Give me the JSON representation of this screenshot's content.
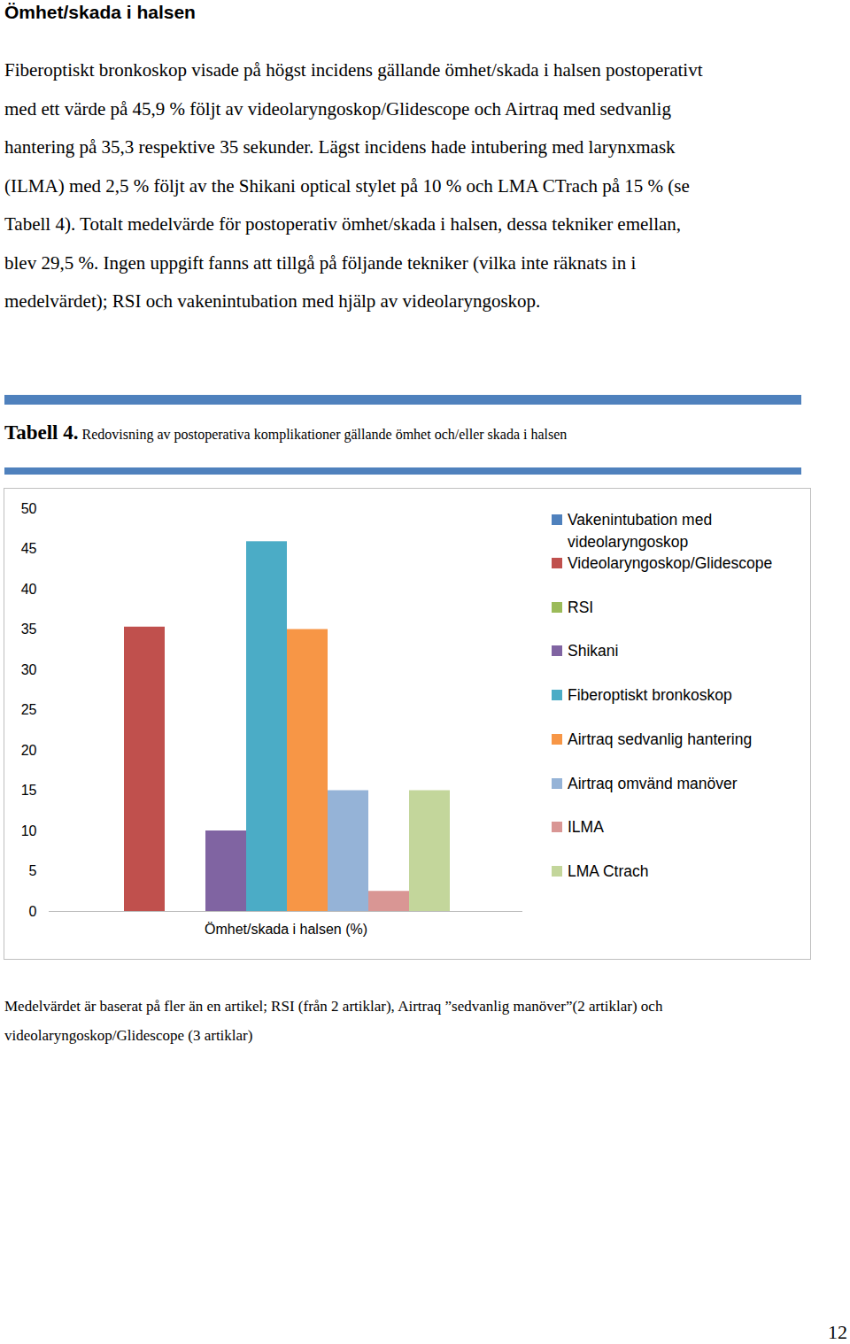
{
  "heading": "Ömhet/skada i halsen",
  "paragraph": [
    "Fiberoptiskt bronkoskop visade på högst incidens gällande ömhet/skada i halsen postoperativt",
    "med ett värde på 45,9 % följt av videolaryngoskop/Glidescope och Airtraq med sedvanlig",
    "hantering på 35,3 respektive 35 sekunder. Lägst incidens hade intubering med larynxmask",
    "(ILMA) med 2,5 % följt av the Shikani optical stylet på 10 % och LMA CTrach på 15 % (se",
    "Tabell 4). Totalt medelvärde för postoperativ ömhet/skada i halsen, dessa tekniker emellan,",
    "blev 29,5 %. Ingen uppgift fanns att tillgå på följande tekniker (vilka inte räknats in i",
    "medelvärdet); RSI och vakenintubation med hjälp av videolaryngoskop."
  ],
  "caption": {
    "label": "Tabell 4.",
    "text": "Redovisning av postoperativa komplikationer gällande ömhet och/eller skada i halsen"
  },
  "chart_data": {
    "type": "bar",
    "categories": [
      "Ömhet/skada i halsen (%)"
    ],
    "series": [
      {
        "name": "Vakenintubation med videolaryngoskop",
        "color": "#4F81BD",
        "values": [
          null
        ]
      },
      {
        "name": "Videolaryngoskop/Glidescope",
        "color": "#C0504D",
        "values": [
          35.3
        ]
      },
      {
        "name": "RSI",
        "color": "#9BBB59",
        "values": [
          null
        ]
      },
      {
        "name": "Shikani",
        "color": "#8064A2",
        "values": [
          10
        ]
      },
      {
        "name": "Fiberoptiskt bronkoskop",
        "color": "#4BACC6",
        "values": [
          45.9
        ]
      },
      {
        "name": "Airtraq sedvanlig hantering",
        "color": "#F79646",
        "values": [
          35
        ]
      },
      {
        "name": "Airtraq omvänd manöver",
        "color": "#95B3D7",
        "values": [
          15
        ]
      },
      {
        "name": "ILMA",
        "color": "#D99694",
        "values": [
          2.5
        ]
      },
      {
        "name": "LMA Ctrach",
        "color": "#C3D69B",
        "values": [
          15
        ]
      }
    ],
    "ylim": [
      0,
      50
    ],
    "yticks": [
      0,
      5,
      10,
      15,
      20,
      25,
      30,
      35,
      40,
      45,
      50
    ],
    "grid": false,
    "legend": "right"
  },
  "footnote": [
    "Medelvärdet är baserat på fler än en artikel; RSI (från 2 artiklar), Airtraq ”sedvanlig manöver”(2 artiklar) och",
    "videolaryngoskop/Glidescope (3 artiklar)"
  ],
  "page_number": "12"
}
